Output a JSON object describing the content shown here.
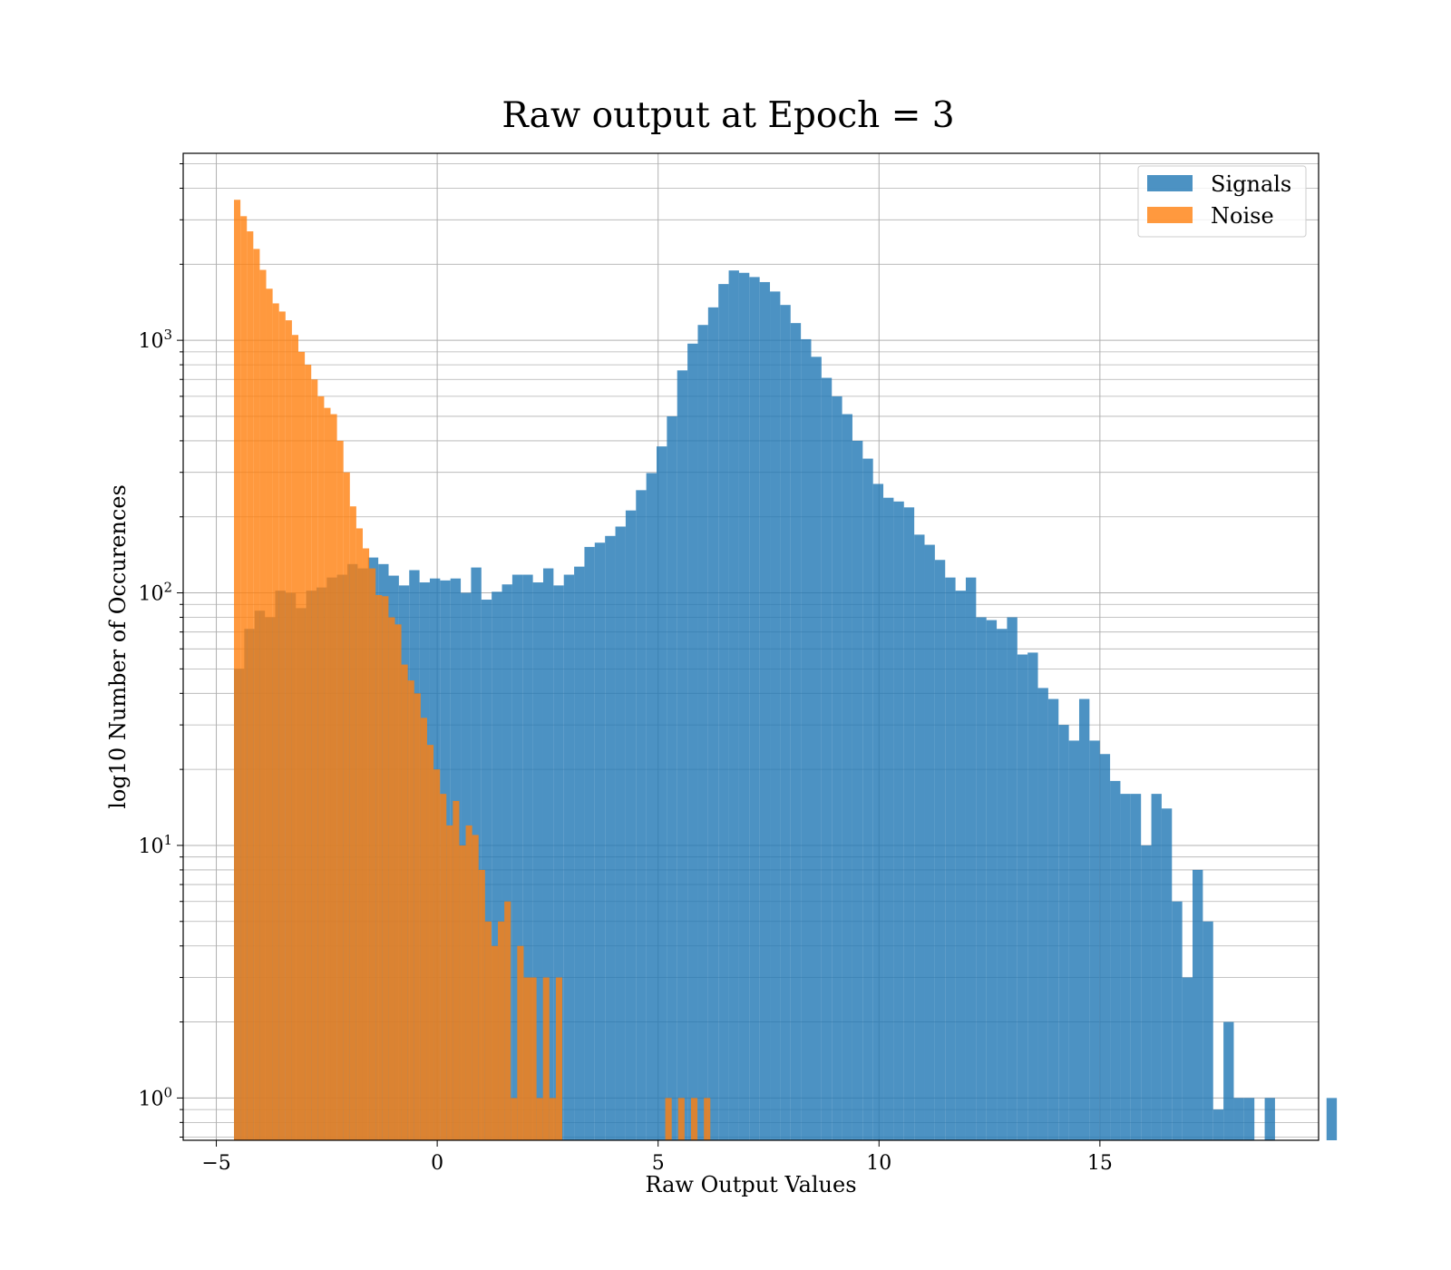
{
  "chart_data": {
    "type": "histogram",
    "title": "Raw output at Epoch = 3",
    "xlabel": "Raw Output Values",
    "ylabel": "log10 Number of Occurences",
    "xlim": [
      -5.75,
      19.95
    ],
    "ylim": [
      0.68,
      5500
    ],
    "yscale": "log",
    "grid": true,
    "legend_position": "upper right",
    "x_ticks": [
      {
        "value": -5,
        "label": "−5"
      },
      {
        "value": 0,
        "label": "0"
      },
      {
        "value": 5,
        "label": "5"
      },
      {
        "value": 10,
        "label": "10"
      },
      {
        "value": 15,
        "label": "15"
      }
    ],
    "y_ticks": [
      {
        "value": 1,
        "base": "10",
        "exp": "0"
      },
      {
        "value": 10,
        "base": "10",
        "exp": "1"
      },
      {
        "value": 100,
        "base": "10",
        "exp": "2"
      },
      {
        "value": 1000,
        "base": "10",
        "exp": "3"
      }
    ],
    "series": [
      {
        "name": "Signals",
        "color": "#1f77b4",
        "opacity": 0.8,
        "bin_start": -4.6,
        "bin_width": 0.2333,
        "counts": [
          50,
          72,
          85,
          80,
          102,
          100,
          87,
          102,
          105,
          115,
          118,
          130,
          125,
          138,
          130,
          117,
          107,
          123,
          110,
          114,
          112,
          114,
          100,
          126,
          94,
          101,
          108,
          118,
          118,
          110,
          125,
          107,
          118,
          127,
          152,
          158,
          168,
          183,
          212,
          255,
          298,
          380,
          500,
          760,
          970,
          1150,
          1350,
          1670,
          1890,
          1850,
          1780,
          1700,
          1560,
          1380,
          1170,
          1010,
          860,
          710,
          600,
          510,
          400,
          340,
          270,
          238,
          230,
          218,
          170,
          155,
          135,
          115,
          102,
          115,
          80,
          78,
          72,
          80,
          57,
          58,
          42,
          38,
          30,
          26,
          38,
          26,
          23,
          18,
          16,
          16,
          10,
          16,
          14,
          6,
          3,
          8,
          5,
          0.9,
          2,
          1,
          1,
          0.6,
          1,
          0.6,
          0.6,
          0.6,
          0.6,
          0.6,
          1
        ]
      },
      {
        "name": "Noise",
        "color": "#ff7f0e",
        "opacity": 0.8,
        "bin_start": -4.6,
        "bin_width": 0.1457,
        "counts": [
          3600,
          3100,
          2700,
          2300,
          1900,
          1600,
          1400,
          1300,
          1200,
          1050,
          900,
          800,
          700,
          600,
          540,
          510,
          400,
          300,
          220,
          180,
          150,
          125,
          98,
          97,
          80,
          75,
          52,
          45,
          40,
          32,
          25,
          20,
          16,
          12,
          15,
          10,
          12,
          11,
          8,
          5,
          4,
          5,
          6,
          1,
          4,
          3,
          3,
          1,
          3,
          1,
          3,
          0.6,
          0.6,
          0.6,
          0.6,
          0.6,
          0.6,
          0.6,
          0.6,
          0.6,
          0.6,
          0.6,
          0.6,
          0.6,
          0.6,
          0.6,
          0.6,
          1,
          0.6,
          1,
          0.6,
          1,
          0.6,
          1
        ]
      }
    ]
  }
}
